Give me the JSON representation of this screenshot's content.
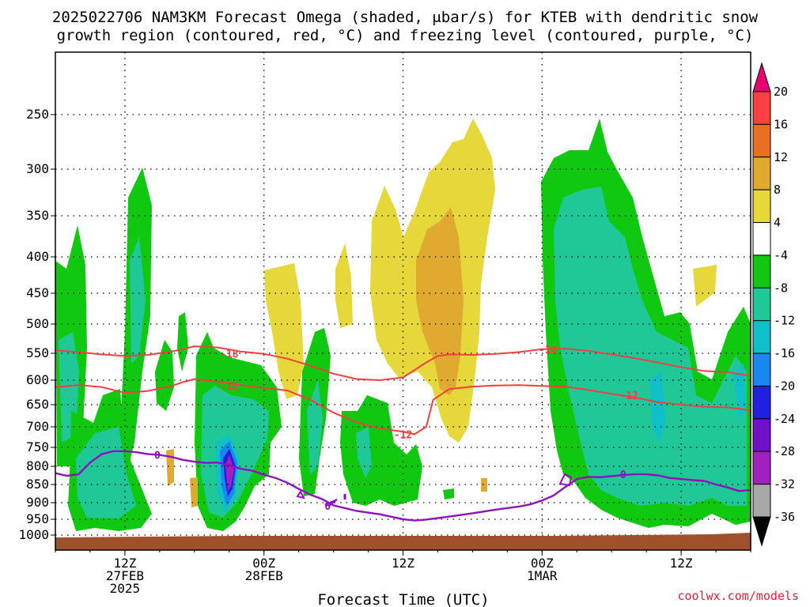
{
  "chart_data": {
    "type": "time-height cross-section",
    "title_line1": "2025022706 NAM3KM Forecast Omega (shaded, μbar/s) for KTEB with dendritic snow",
    "title_line2": "growth region (contoured, red, °C) and freezing level (contoured, purple, °C)",
    "xlabel": "Forecast Time (UTC)",
    "credit": "coolwx.com/models",
    "x_range_hours": [
      6,
      66
    ],
    "x_ticks": [
      {
        "hour": 12,
        "label": "12Z",
        "sub": [
          "27FEB",
          "2025"
        ]
      },
      {
        "hour": 24,
        "label": "00Z",
        "sub": [
          "28FEB"
        ]
      },
      {
        "hour": 36,
        "label": "12Z",
        "sub": []
      },
      {
        "hour": 48,
        "label": "00Z",
        "sub": [
          "1MAR"
        ]
      },
      {
        "hour": 60,
        "label": "12Z",
        "sub": []
      }
    ],
    "y_range_hpa": [
      1000,
      200
    ],
    "y_ticks": [
      "250",
      "300",
      "350",
      "400",
      "450",
      "500",
      "550",
      "600",
      "650",
      "700",
      "750",
      "800",
      "850",
      "900",
      "950",
      "1000"
    ],
    "colorbar": {
      "labels": [
        "20",
        "16",
        "12",
        "8",
        "4",
        "-4",
        "-8",
        "-12",
        "-16",
        "-20",
        "-24",
        "-28",
        "-32",
        "-36"
      ],
      "bins": [
        {
          "color": "#e8006e",
          "range": ">20"
        },
        {
          "color": "#ff4040",
          "range": "16 to 20"
        },
        {
          "color": "#e87020",
          "range": "12 to 16"
        },
        {
          "color": "#e0aa30",
          "range": "8 to 12"
        },
        {
          "color": "#e6d83a",
          "range": "4 to 8"
        },
        {
          "color": "#ffffff",
          "range": "-4 to 4"
        },
        {
          "color": "#10c810",
          "range": "-8 to -4"
        },
        {
          "color": "#20c898",
          "range": "-12 to -8"
        },
        {
          "color": "#10c0c8",
          "range": "-16 to -12"
        },
        {
          "color": "#1888f0",
          "range": "-20 to -16"
        },
        {
          "color": "#2020e0",
          "range": "-24 to -20"
        },
        {
          "color": "#7010c8",
          "range": "-28 to -24"
        },
        {
          "color": "#a020c0",
          "range": "-32 to -28"
        },
        {
          "color": "#a8a8a8",
          "range": "-36 to -32"
        },
        {
          "color": "#000000",
          "range": "<-36"
        }
      ]
    },
    "contours": {
      "dgz_color": "#f04040",
      "freezing_color": "#9010c0",
      "minus18": {
        "label": "-18",
        "points": [
          [
            6,
            545
          ],
          [
            8,
            548
          ],
          [
            10,
            552
          ],
          [
            12,
            555
          ],
          [
            14,
            553
          ],
          [
            16,
            547
          ],
          [
            17,
            543
          ],
          [
            18,
            538
          ],
          [
            20,
            540
          ],
          [
            22,
            547
          ],
          [
            24,
            551
          ],
          [
            26,
            560
          ],
          [
            28,
            573
          ],
          [
            30,
            588
          ],
          [
            32,
            598
          ],
          [
            34,
            600
          ],
          [
            36,
            595
          ],
          [
            38,
            567
          ],
          [
            39,
            555
          ],
          [
            40,
            552
          ],
          [
            42,
            553
          ],
          [
            44,
            551
          ],
          [
            46,
            548
          ],
          [
            48,
            543
          ],
          [
            50,
            542
          ],
          [
            52,
            546
          ],
          [
            54,
            552
          ],
          [
            56,
            559
          ],
          [
            58,
            567
          ],
          [
            60,
            576
          ],
          [
            62,
            583
          ],
          [
            64,
            585
          ],
          [
            66,
            592
          ]
        ],
        "label_pos": [
          [
            21,
            551
          ],
          [
            48.5,
            543
          ]
        ]
      },
      "minus12": {
        "label": "-12",
        "points": [
          [
            6,
            614
          ],
          [
            8,
            610
          ],
          [
            10,
            614
          ],
          [
            12,
            626
          ],
          [
            14,
            622
          ],
          [
            16,
            612
          ],
          [
            17,
            604
          ],
          [
            18,
            598
          ],
          [
            20,
            603
          ],
          [
            22,
            610
          ],
          [
            24,
            616
          ],
          [
            26,
            621
          ],
          [
            28,
            640
          ],
          [
            30,
            668
          ],
          [
            32,
            690
          ],
          [
            34,
            704
          ],
          [
            36,
            712
          ],
          [
            37,
            718
          ],
          [
            38,
            700
          ],
          [
            38.6,
            640
          ],
          [
            40,
            618
          ],
          [
            42,
            613
          ],
          [
            44,
            611
          ],
          [
            46,
            610
          ],
          [
            48,
            612
          ],
          [
            50,
            613
          ],
          [
            52,
            620
          ],
          [
            54,
            628
          ],
          [
            56,
            635
          ],
          [
            58,
            645
          ],
          [
            60,
            650
          ],
          [
            62,
            655
          ],
          [
            64,
            656
          ],
          [
            66,
            663
          ]
        ],
        "label_pos": [
          [
            21,
            612
          ],
          [
            36,
            718
          ],
          [
            55.5,
            631
          ]
        ]
      },
      "freezing": {
        "label": "0",
        "points": [
          [
            6,
            819
          ],
          [
            7,
            826
          ],
          [
            8,
            822
          ],
          [
            9,
            790
          ],
          [
            10,
            768
          ],
          [
            11,
            760
          ],
          [
            12,
            760
          ],
          [
            13,
            763
          ],
          [
            14,
            768
          ],
          [
            15,
            770
          ],
          [
            16,
            775
          ],
          [
            17,
            783
          ],
          [
            18,
            788
          ],
          [
            19,
            791
          ],
          [
            20,
            790
          ],
          [
            21,
            797
          ],
          [
            22,
            807
          ],
          [
            23,
            812
          ],
          [
            24,
            823
          ],
          [
            25,
            832
          ],
          [
            26,
            845
          ],
          [
            27,
            862
          ],
          [
            28,
            878
          ],
          [
            29,
            890
          ],
          [
            30,
            908
          ],
          [
            32,
            925
          ],
          [
            34,
            935
          ],
          [
            36,
            950
          ],
          [
            37,
            954
          ],
          [
            38,
            951
          ],
          [
            40,
            942
          ],
          [
            42,
            932
          ],
          [
            44,
            921
          ],
          [
            46,
            912
          ],
          [
            47,
            905
          ],
          [
            48,
            894
          ],
          [
            49,
            880
          ],
          [
            50,
            857
          ],
          [
            51,
            835
          ],
          [
            52,
            829
          ],
          [
            53,
            830
          ],
          [
            54,
            827
          ],
          [
            55,
            824
          ],
          [
            56,
            822
          ],
          [
            57,
            822
          ],
          [
            58,
            825
          ],
          [
            59,
            832
          ],
          [
            60,
            835
          ],
          [
            61,
            838
          ],
          [
            62,
            840
          ],
          [
            63,
            850
          ],
          [
            64,
            858
          ],
          [
            65,
            868
          ],
          [
            66,
            865
          ]
        ],
        "label_pos": [
          [
            14.8,
            770
          ],
          [
            29.5,
            910
          ],
          [
            55,
            822
          ]
        ]
      }
    }
  }
}
